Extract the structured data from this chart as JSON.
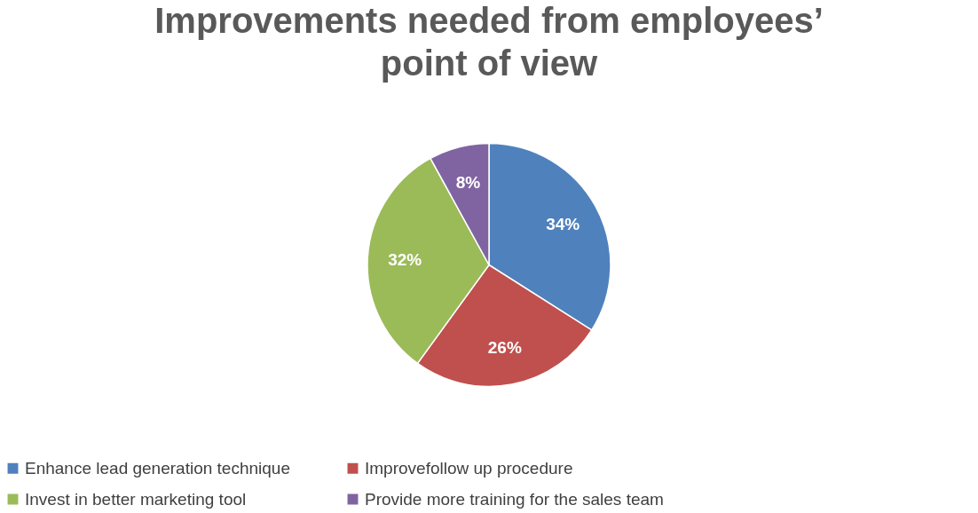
{
  "chart_data": {
    "type": "pie",
    "title": "Improvements needed from employees’ point of view",
    "categories": [
      "Enhance lead generation technique",
      "Improvefollow up procedure",
      "Invest in better marketing tool",
      "Provide more training for the sales team"
    ],
    "values": [
      34,
      26,
      32,
      8
    ],
    "value_labels": [
      "34%",
      "26%",
      "32%",
      "8%"
    ],
    "colors": [
      "#4f81bd",
      "#c0504d",
      "#9bbb59",
      "#8064a2"
    ],
    "legend": "bottom"
  }
}
